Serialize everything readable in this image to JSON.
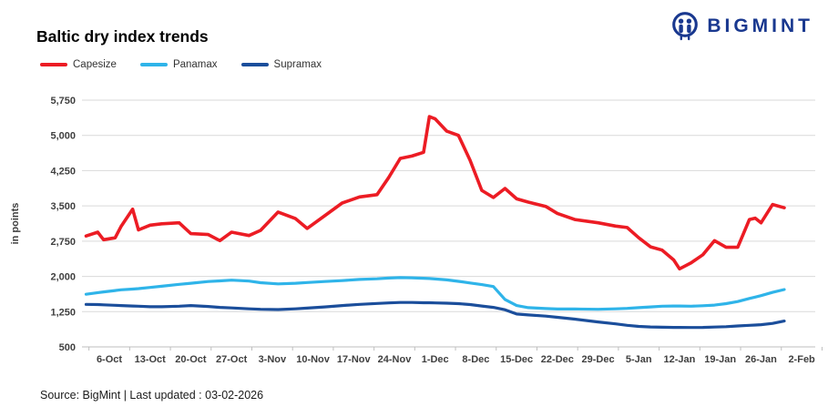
{
  "header": {
    "title": "Baltic dry index trends",
    "brand": "BIGMINT"
  },
  "footer": {
    "source": "Source: BigMint | Last updated : 03-02-2026"
  },
  "colors": {
    "brand_navy": "#19388f",
    "capesize_red": "#ec1c24",
    "panamax_cyan": "#2fb4e9",
    "supramax_blue": "#1b4e9b",
    "gridline": "#d9d9d9",
    "axis": "#bfbfbf"
  },
  "chart_data": {
    "type": "line",
    "title": "Baltic dry index trends",
    "xlabel": "",
    "ylabel": "in points",
    "ylim": [
      500,
      5750
    ],
    "yticks": [
      500,
      1250,
      2000,
      2750,
      3500,
      4250,
      5000,
      5750
    ],
    "grid": true,
    "legend_position": "top-left",
    "x_tick_labels": [
      "6-Oct",
      "13-Oct",
      "20-Oct",
      "27-Oct",
      "3-Nov",
      "10-Nov",
      "17-Nov",
      "24-Nov",
      "1-Dec",
      "8-Dec",
      "15-Dec",
      "22-Dec",
      "29-Dec",
      "5-Jan",
      "12-Jan",
      "19-Jan",
      "26-Jan",
      "2-Feb"
    ],
    "x_dates": [
      "2-Oct",
      "4-Oct",
      "5-Oct",
      "7-Oct",
      "8-Oct",
      "10-Oct",
      "11-Oct",
      "13-Oct",
      "15-Oct",
      "18-Oct",
      "20-Oct",
      "23-Oct",
      "25-Oct",
      "27-Oct",
      "30-Oct",
      "1-Nov",
      "4-Nov",
      "7-Nov",
      "9-Nov",
      "12-Nov",
      "15-Nov",
      "18-Nov",
      "21-Nov",
      "23-Nov",
      "25-Nov",
      "27-Nov",
      "29-Nov",
      "30-Nov",
      "1-Dec",
      "3-Dec",
      "5-Dec",
      "7-Dec",
      "9-Dec",
      "11-Dec",
      "13-Dec",
      "15-Dec",
      "17-Dec",
      "20-Dec",
      "22-Dec",
      "25-Dec",
      "29-Dec",
      "1-Jan",
      "3-Jan",
      "5-Jan",
      "7-Jan",
      "9-Jan",
      "11-Jan",
      "12-Jan",
      "14-Jan",
      "16-Jan",
      "18-Jan",
      "20-Jan",
      "22-Jan",
      "24-Jan",
      "25-Jan",
      "26-Jan",
      "28-Jan",
      "30-Jan"
    ],
    "x_days": [
      0,
      2,
      3,
      5,
      6,
      8,
      9,
      11,
      13,
      16,
      18,
      21,
      23,
      25,
      28,
      30,
      33,
      36,
      38,
      41,
      44,
      47,
      50,
      52,
      54,
      56,
      58,
      59,
      60,
      62,
      64,
      66,
      68,
      70,
      72,
      74,
      76,
      79,
      81,
      84,
      88,
      91,
      93,
      95,
      97,
      99,
      101,
      102,
      104,
      106,
      108,
      110,
      112,
      114,
      115,
      116,
      118,
      120
    ],
    "series": [
      {
        "name": "Capesize",
        "color": "#ec1c24",
        "values": [
          2860,
          2940,
          2780,
          2820,
          3060,
          3430,
          2990,
          3090,
          3120,
          3140,
          2910,
          2890,
          2760,
          2940,
          2870,
          2980,
          3370,
          3230,
          3020,
          3290,
          3560,
          3690,
          3740,
          4100,
          4510,
          4560,
          4640,
          5400,
          5350,
          5090,
          5000,
          4470,
          3830,
          3680,
          3870,
          3650,
          3580,
          3490,
          3340,
          3210,
          3140,
          3070,
          3040,
          2820,
          2630,
          2560,
          2350,
          2160,
          2290,
          2460,
          2760,
          2620,
          2620,
          3210,
          3240,
          3140,
          3530,
          3460
        ]
      },
      {
        "name": "Panamax",
        "color": "#2fb4e9",
        "values": [
          1620,
          1655,
          1670,
          1700,
          1715,
          1730,
          1740,
          1765,
          1790,
          1830,
          1855,
          1890,
          1905,
          1920,
          1900,
          1865,
          1840,
          1855,
          1870,
          1890,
          1910,
          1935,
          1950,
          1965,
          1975,
          1970,
          1960,
          1955,
          1945,
          1925,
          1895,
          1860,
          1825,
          1785,
          1510,
          1380,
          1335,
          1315,
          1305,
          1305,
          1300,
          1310,
          1320,
          1335,
          1350,
          1365,
          1370,
          1370,
          1365,
          1375,
          1390,
          1420,
          1465,
          1530,
          1560,
          1590,
          1660,
          1720
        ]
      },
      {
        "name": "Supramax",
        "color": "#1b4e9b",
        "values": [
          1405,
          1400,
          1395,
          1385,
          1380,
          1370,
          1365,
          1355,
          1355,
          1365,
          1380,
          1360,
          1340,
          1330,
          1310,
          1300,
          1295,
          1310,
          1325,
          1350,
          1380,
          1405,
          1425,
          1435,
          1445,
          1445,
          1440,
          1440,
          1435,
          1430,
          1420,
          1400,
          1370,
          1340,
          1290,
          1200,
          1180,
          1155,
          1130,
          1090,
          1030,
          990,
          960,
          935,
          925,
          918,
          915,
          915,
          912,
          915,
          922,
          930,
          945,
          960,
          965,
          972,
          1000,
          1050
        ]
      }
    ]
  }
}
